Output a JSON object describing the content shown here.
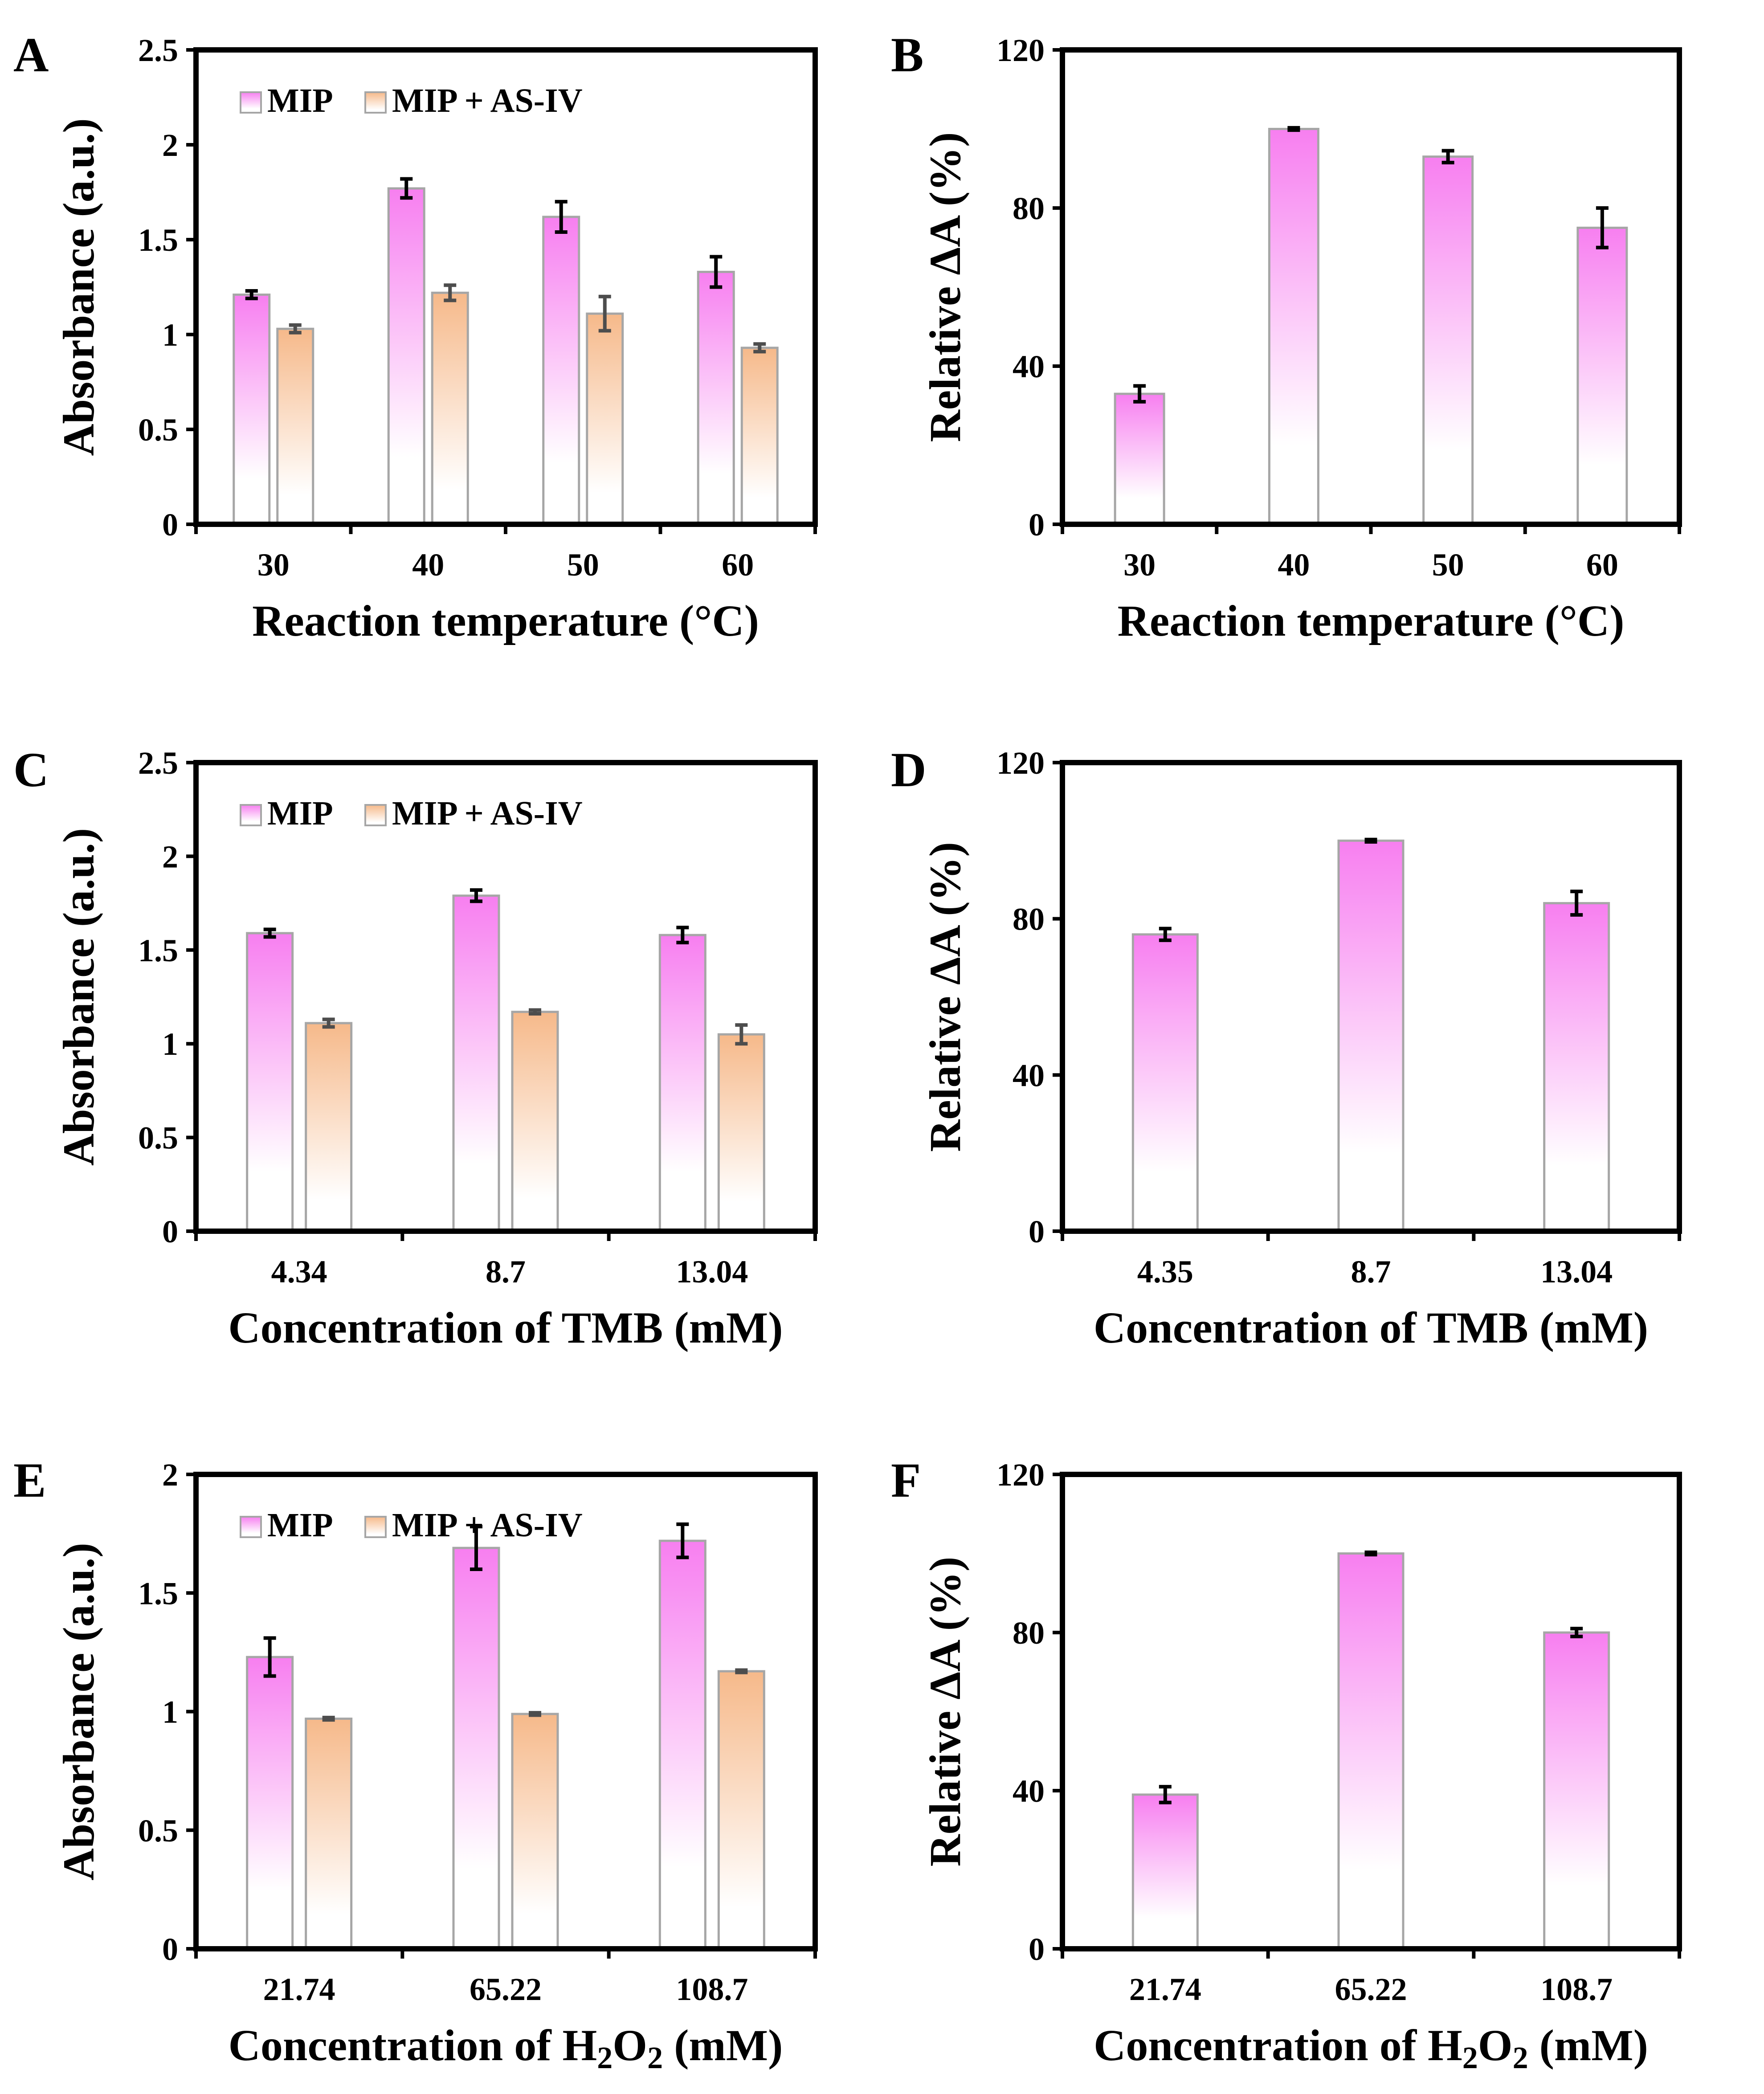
{
  "colors": {
    "mip_top": "#f77ff0",
    "mip_bottom": "#ffffff",
    "asiv_top": "#f6b98a",
    "asiv_bottom": "#ffffff",
    "bar_stroke": "#a6a6a6",
    "axis": "#000000",
    "error_mip": "#000000",
    "error_asiv": "#4d4d4d"
  },
  "chart_data": [
    {
      "id": "A",
      "panel_label": "A",
      "type": "bar",
      "categories": [
        "30",
        "40",
        "50",
        "60"
      ],
      "series": [
        {
          "name": "MIP",
          "color": "mip",
          "values": [
            1.21,
            1.77,
            1.62,
            1.33
          ],
          "errors": [
            0.02,
            0.05,
            0.08,
            0.08
          ]
        },
        {
          "name": "MIP + AS-IV",
          "color": "asiv",
          "values": [
            1.03,
            1.22,
            1.11,
            0.93
          ],
          "errors": [
            0.02,
            0.04,
            0.09,
            0.02
          ]
        }
      ],
      "ylim": [
        0,
        2.5
      ],
      "yticks": [
        0,
        0.5,
        1,
        1.5,
        2,
        2.5
      ],
      "ytick_labels": [
        "0",
        "0.5",
        "1",
        "1.5",
        "2",
        "2.5"
      ],
      "xlabel": "Reaction temperature (°C)",
      "ylabel": "Absorbance (a.u.)",
      "legend": [
        "MIP",
        "MIP + AS-IV"
      ]
    },
    {
      "id": "B",
      "panel_label": "B",
      "type": "bar",
      "categories": [
        "30",
        "40",
        "50",
        "60"
      ],
      "series": [
        {
          "name": "Relative ΔA",
          "color": "mip",
          "values": [
            33,
            100,
            93,
            75
          ],
          "errors": [
            2.0,
            0.3,
            1.5,
            5.0
          ]
        }
      ],
      "ylim": [
        0,
        120
      ],
      "yticks": [
        0,
        40,
        80,
        120
      ],
      "ytick_labels": [
        "0",
        "40",
        "80",
        "120"
      ],
      "xlabel": "Reaction temperature (°C)",
      "ylabel": "Relative ΔA (%)",
      "legend": []
    },
    {
      "id": "C",
      "panel_label": "C",
      "type": "bar",
      "categories": [
        "4.34",
        "8.7",
        "13.04"
      ],
      "series": [
        {
          "name": "MIP",
          "color": "mip",
          "values": [
            1.59,
            1.79,
            1.58
          ],
          "errors": [
            0.02,
            0.03,
            0.04
          ]
        },
        {
          "name": "MIP + AS-IV",
          "color": "asiv",
          "values": [
            1.11,
            1.17,
            1.05
          ],
          "errors": [
            0.02,
            0.01,
            0.05
          ]
        }
      ],
      "ylim": [
        0,
        2.5
      ],
      "yticks": [
        0,
        0.5,
        1,
        1.5,
        2,
        2.5
      ],
      "ytick_labels": [
        "0",
        "0.5",
        "1",
        "1.5",
        "2",
        "2.5"
      ],
      "xlabel": "Concentration of TMB (mM)",
      "ylabel": "Absorbance (a.u.)",
      "legend": [
        "MIP",
        "MIP + AS-IV"
      ]
    },
    {
      "id": "D",
      "panel_label": "D",
      "type": "bar",
      "categories": [
        "4.35",
        "8.7",
        "13.04"
      ],
      "series": [
        {
          "name": "Relative ΔA",
          "color": "mip",
          "values": [
            76,
            100,
            84
          ],
          "errors": [
            1.5,
            0.3,
            3.0
          ]
        }
      ],
      "ylim": [
        0,
        120
      ],
      "yticks": [
        0,
        40,
        80,
        120
      ],
      "ytick_labels": [
        "0",
        "40",
        "80",
        "120"
      ],
      "xlabel": "Concentration of TMB (mM)",
      "ylabel": "Relative ΔA (%)",
      "legend": []
    },
    {
      "id": "E",
      "panel_label": "E",
      "type": "bar",
      "categories": [
        "21.74",
        "65.22",
        "108.7"
      ],
      "series": [
        {
          "name": "MIP",
          "color": "mip",
          "values": [
            1.23,
            1.69,
            1.72
          ],
          "errors": [
            0.08,
            0.09,
            0.07
          ]
        },
        {
          "name": "MIP + AS-IV",
          "color": "asiv",
          "values": [
            0.97,
            0.99,
            1.17
          ],
          "errors": [
            0.005,
            0.005,
            0.005
          ]
        }
      ],
      "ylim": [
        0,
        2
      ],
      "yticks": [
        0,
        0.5,
        1,
        1.5,
        2
      ],
      "ytick_labels": [
        "0",
        "0.5",
        "1",
        "1.5",
        "2"
      ],
      "xlabel": "Concentration of H₂O₂ (mM)",
      "xlabel_parts": [
        "Concentration of H",
        "2",
        "O",
        "2",
        " (mM)"
      ],
      "ylabel": "Absorbance (a.u.)",
      "legend": [
        "MIP",
        "MIP + AS-IV"
      ]
    },
    {
      "id": "F",
      "panel_label": "F",
      "type": "bar",
      "categories": [
        "21.74",
        "65.22",
        "108.7"
      ],
      "series": [
        {
          "name": "Relative ΔA",
          "color": "mip",
          "values": [
            39,
            100,
            80
          ],
          "errors": [
            2.0,
            0.3,
            1.0
          ]
        }
      ],
      "ylim": [
        0,
        120
      ],
      "yticks": [
        0,
        40,
        80,
        120
      ],
      "ytick_labels": [
        "0",
        "40",
        "80",
        "120"
      ],
      "xlabel": "Concentration of H₂O₂ (mM)",
      "xlabel_parts": [
        "Concentration of H",
        "2",
        "O",
        "2",
        " (mM)"
      ],
      "ylabel": "Relative ΔA (%)",
      "legend": []
    }
  ]
}
